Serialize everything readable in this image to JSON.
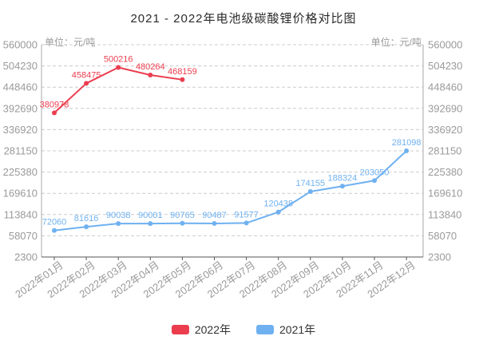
{
  "chart_data": {
    "type": "line",
    "title": "2021 - 2022年电池级碳酸锂价格对比图",
    "unit_label": "单位：元/吨",
    "categories": [
      "2022年01月",
      "2022年02月",
      "2022年03月",
      "2022年04月",
      "2022年05月",
      "2022年06月",
      "2022年07月",
      "2022年08月",
      "2022年09月",
      "2022年10月",
      "2022年11月",
      "2022年12月"
    ],
    "y_ticks": [
      2300,
      58070,
      113840,
      169610,
      225380,
      281150,
      336920,
      392690,
      448460,
      504230,
      560000
    ],
    "ylim": [
      2300,
      560000
    ],
    "series": [
      {
        "name": "2022年",
        "color": "#ec3d4f",
        "values": [
          380978,
          458475,
          500216,
          480264,
          468159
        ]
      },
      {
        "name": "2021年",
        "color": "#6fb1f0",
        "values": [
          72060,
          81616,
          90038,
          90001,
          90765,
          90487,
          91577,
          120438,
          174155,
          188324,
          203050,
          281098
        ]
      }
    ],
    "colors": {
      "grid_line": "#cccccc",
      "axis_line": "#555555",
      "side_axis_line": "#aaaaaa",
      "axis_text": "#9a9a9a"
    },
    "layout": {
      "legend_position": "bottom",
      "grid": "dashed",
      "x_label_rotation": -35,
      "dual_y_axis": true
    }
  }
}
